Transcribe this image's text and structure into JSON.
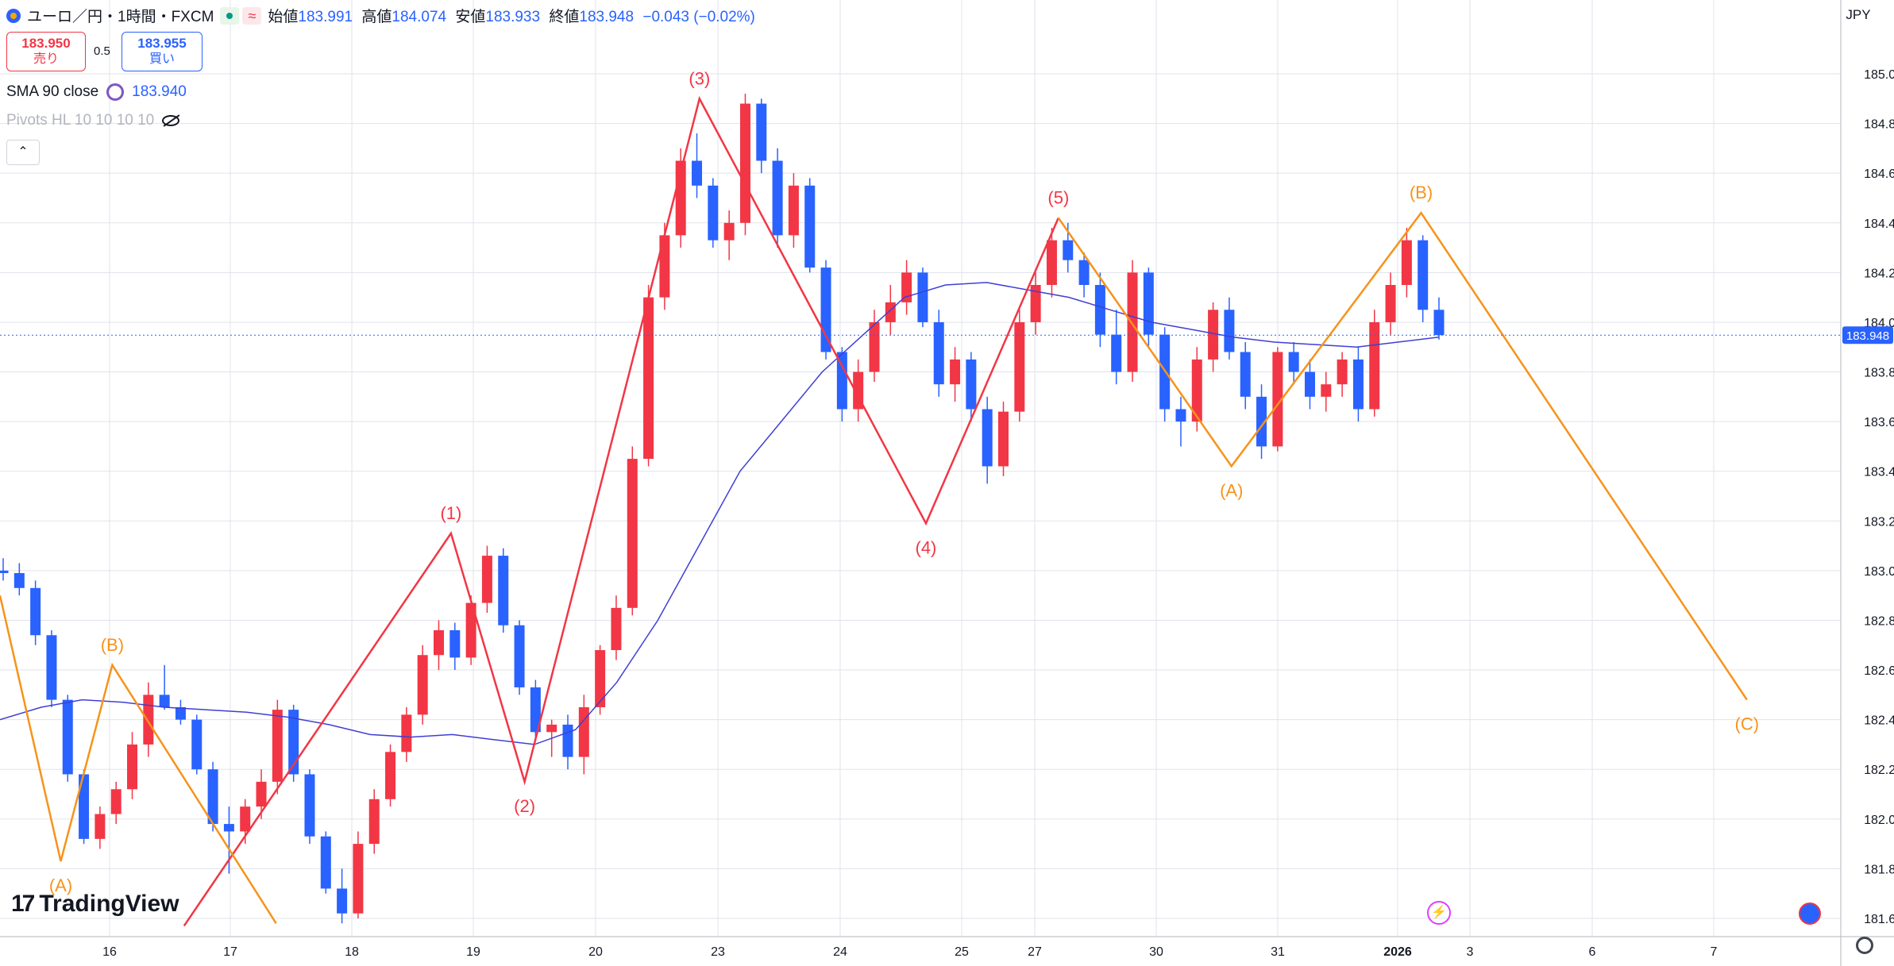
{
  "header": {
    "symbol": "ユーロ／円・1時間・FXCM",
    "open_label": "始値",
    "open": "183.991",
    "high_label": "高値",
    "high": "184.074",
    "low_label": "安値",
    "low": "183.933",
    "close_label": "終値",
    "close": "183.948",
    "change": "−0.043 (−0.02%)",
    "badge_r": "≈"
  },
  "trade": {
    "sell_price": "183.950",
    "sell_label": "売り",
    "spread": "0.5",
    "buy_price": "183.955",
    "buy_label": "買い"
  },
  "indicators": {
    "sma_label": "SMA 90 close",
    "sma_value": "183.940",
    "pivots_label": "Pivots HL 10 10 10 10"
  },
  "currency": "JPY",
  "collapse_glyph": "⌃",
  "brand": {
    "mark": "17",
    "name": "TradingView"
  },
  "colors": {
    "up": "#089981",
    "candle_up": "#f23645",
    "candle_down": "#2962ff",
    "wave_red": "#f23645",
    "wave_orange": "#f7931a",
    "sma": "#3f3fd4",
    "price_tag": "#2962ff"
  },
  "chart_data": {
    "type": "candlestick",
    "ylim": [
      181.5,
      185.1
    ],
    "y_ticks": [
      "181.600",
      "181.800",
      "182.000",
      "182.200",
      "182.400",
      "182.600",
      "182.800",
      "183.000",
      "183.200",
      "183.400",
      "183.600",
      "183.800",
      "184.000",
      "184.200",
      "184.400",
      "184.600",
      "184.800",
      "185.000"
    ],
    "x_ticks": [
      "16",
      "17",
      "18",
      "19",
      "20",
      "23",
      "24",
      "25",
      "27",
      "30",
      "31",
      "2026",
      "3",
      "6",
      "7"
    ],
    "last_price": "183.948",
    "candle_series": [
      [
        183.0,
        183.05,
        182.96,
        182.99
      ],
      [
        182.99,
        183.03,
        182.9,
        182.93
      ],
      [
        182.93,
        182.96,
        182.7,
        182.74
      ],
      [
        182.74,
        182.76,
        182.45,
        182.48
      ],
      [
        182.48,
        182.5,
        182.15,
        182.18
      ],
      [
        182.18,
        182.2,
        181.9,
        181.92
      ],
      [
        181.92,
        182.05,
        181.88,
        182.02
      ],
      [
        182.02,
        182.15,
        181.98,
        182.12
      ],
      [
        182.12,
        182.35,
        182.08,
        182.3
      ],
      [
        182.3,
        182.55,
        182.25,
        182.5
      ],
      [
        182.5,
        182.62,
        182.44,
        182.45
      ],
      [
        182.45,
        182.48,
        182.38,
        182.4
      ],
      [
        182.4,
        182.42,
        182.18,
        182.2
      ],
      [
        182.2,
        182.23,
        181.95,
        181.98
      ],
      [
        181.98,
        182.05,
        181.78,
        181.95
      ],
      [
        181.95,
        182.08,
        181.9,
        182.05
      ],
      [
        182.05,
        182.2,
        182.0,
        182.15
      ],
      [
        182.15,
        182.48,
        182.1,
        182.44
      ],
      [
        182.44,
        182.46,
        182.15,
        182.18
      ],
      [
        182.18,
        182.2,
        181.9,
        181.93
      ],
      [
        181.93,
        181.95,
        181.7,
        181.72
      ],
      [
        181.72,
        181.8,
        181.58,
        181.62
      ],
      [
        181.62,
        181.95,
        181.6,
        181.9
      ],
      [
        181.9,
        182.12,
        181.86,
        182.08
      ],
      [
        182.08,
        182.3,
        182.05,
        182.27
      ],
      [
        182.27,
        182.45,
        182.23,
        182.42
      ],
      [
        182.42,
        182.7,
        182.38,
        182.66
      ],
      [
        182.66,
        182.8,
        182.6,
        182.76
      ],
      [
        182.76,
        182.79,
        182.6,
        182.65
      ],
      [
        182.65,
        182.9,
        182.62,
        182.87
      ],
      [
        182.87,
        183.1,
        182.83,
        183.06
      ],
      [
        183.06,
        183.09,
        182.75,
        182.78
      ],
      [
        182.78,
        182.8,
        182.5,
        182.53
      ],
      [
        182.53,
        182.56,
        182.32,
        182.35
      ],
      [
        182.35,
        182.4,
        182.25,
        182.38
      ],
      [
        182.38,
        182.42,
        182.2,
        182.25
      ],
      [
        182.25,
        182.5,
        182.18,
        182.45
      ],
      [
        182.45,
        182.7,
        182.42,
        182.68
      ],
      [
        182.68,
        182.9,
        182.64,
        182.85
      ],
      [
        182.85,
        183.5,
        182.82,
        183.45
      ],
      [
        183.45,
        184.15,
        183.42,
        184.1
      ],
      [
        184.1,
        184.4,
        184.05,
        184.35
      ],
      [
        184.35,
        184.7,
        184.3,
        184.65
      ],
      [
        184.65,
        184.76,
        184.5,
        184.55
      ],
      [
        184.55,
        184.58,
        184.3,
        184.33
      ],
      [
        184.33,
        184.45,
        184.25,
        184.4
      ],
      [
        184.4,
        184.92,
        184.35,
        184.88
      ],
      [
        184.88,
        184.9,
        184.6,
        184.65
      ],
      [
        184.65,
        184.7,
        184.3,
        184.35
      ],
      [
        184.35,
        184.6,
        184.3,
        184.55
      ],
      [
        184.55,
        184.58,
        184.2,
        184.22
      ],
      [
        184.22,
        184.25,
        183.85,
        183.88
      ],
      [
        183.88,
        183.9,
        183.6,
        183.65
      ],
      [
        183.65,
        183.85,
        183.6,
        183.8
      ],
      [
        183.8,
        184.05,
        183.76,
        184.0
      ],
      [
        184.0,
        184.15,
        183.95,
        184.08
      ],
      [
        184.08,
        184.25,
        184.03,
        184.2
      ],
      [
        184.2,
        184.22,
        183.98,
        184.0
      ],
      [
        184.0,
        184.05,
        183.7,
        183.75
      ],
      [
        183.75,
        183.9,
        183.68,
        183.85
      ],
      [
        183.85,
        183.88,
        183.6,
        183.65
      ],
      [
        183.65,
        183.7,
        183.35,
        183.42
      ],
      [
        183.42,
        183.68,
        183.38,
        183.64
      ],
      [
        183.64,
        184.05,
        183.6,
        184.0
      ],
      [
        184.0,
        184.2,
        183.95,
        184.15
      ],
      [
        184.15,
        184.38,
        184.1,
        184.33
      ],
      [
        184.33,
        184.4,
        184.2,
        184.25
      ],
      [
        184.25,
        184.28,
        184.1,
        184.15
      ],
      [
        184.15,
        184.2,
        183.9,
        183.95
      ],
      [
        183.95,
        184.05,
        183.75,
        183.8
      ],
      [
        183.8,
        184.25,
        183.76,
        184.2
      ],
      [
        184.2,
        184.22,
        183.9,
        183.95
      ],
      [
        183.95,
        183.98,
        183.6,
        183.65
      ],
      [
        183.65,
        183.7,
        183.5,
        183.6
      ],
      [
        183.6,
        183.9,
        183.56,
        183.85
      ],
      [
        183.85,
        184.08,
        183.8,
        184.05
      ],
      [
        184.05,
        184.1,
        183.85,
        183.88
      ],
      [
        183.88,
        183.92,
        183.65,
        183.7
      ],
      [
        183.7,
        183.75,
        183.45,
        183.5
      ],
      [
        183.5,
        183.9,
        183.48,
        183.88
      ],
      [
        183.88,
        183.92,
        183.75,
        183.8
      ],
      [
        183.8,
        183.85,
        183.65,
        183.7
      ],
      [
        183.7,
        183.8,
        183.64,
        183.75
      ],
      [
        183.75,
        183.88,
        183.7,
        183.85
      ],
      [
        183.85,
        183.9,
        183.6,
        183.65
      ],
      [
        183.65,
        184.05,
        183.62,
        184.0
      ],
      [
        184.0,
        184.2,
        183.95,
        184.15
      ],
      [
        184.15,
        184.38,
        184.1,
        184.33
      ],
      [
        184.33,
        184.35,
        184.0,
        184.05
      ],
      [
        184.05,
        184.1,
        183.93,
        183.948
      ]
    ],
    "sma_series": [
      182.4,
      182.45,
      182.48,
      182.47,
      182.45,
      182.44,
      182.43,
      182.41,
      182.38,
      182.34,
      182.33,
      182.34,
      182.32,
      182.3,
      182.36,
      182.55,
      182.8,
      183.1,
      183.4,
      183.6,
      183.8,
      183.95,
      184.1,
      184.15,
      184.16,
      184.13,
      184.1,
      184.05,
      184.0,
      183.97,
      183.94,
      183.92,
      183.91,
      183.9,
      183.92,
      183.94
    ],
    "red_wave": {
      "labels": [
        "(1)",
        "(2)",
        "(3)",
        "(4)",
        "(5)"
      ],
      "points": [
        [
          0.1,
          181.57
        ],
        [
          0.245,
          183.15
        ],
        [
          0.285,
          182.15
        ],
        [
          0.38,
          184.9
        ],
        [
          0.503,
          183.19
        ],
        [
          0.575,
          184.42
        ]
      ]
    },
    "orange_waves": [
      {
        "labels": [
          "(A)",
          "(B)"
        ],
        "points": [
          [
            0.0,
            182.9
          ],
          [
            0.033,
            181.83
          ],
          [
            0.061,
            182.62
          ],
          [
            0.15,
            181.58
          ]
        ]
      },
      {
        "labels": [
          "(A)",
          "(B)",
          "(C)"
        ],
        "points": [
          [
            0.575,
            184.42
          ],
          [
            0.669,
            183.42
          ],
          [
            0.772,
            184.44
          ],
          [
            0.949,
            182.48
          ]
        ]
      }
    ]
  }
}
